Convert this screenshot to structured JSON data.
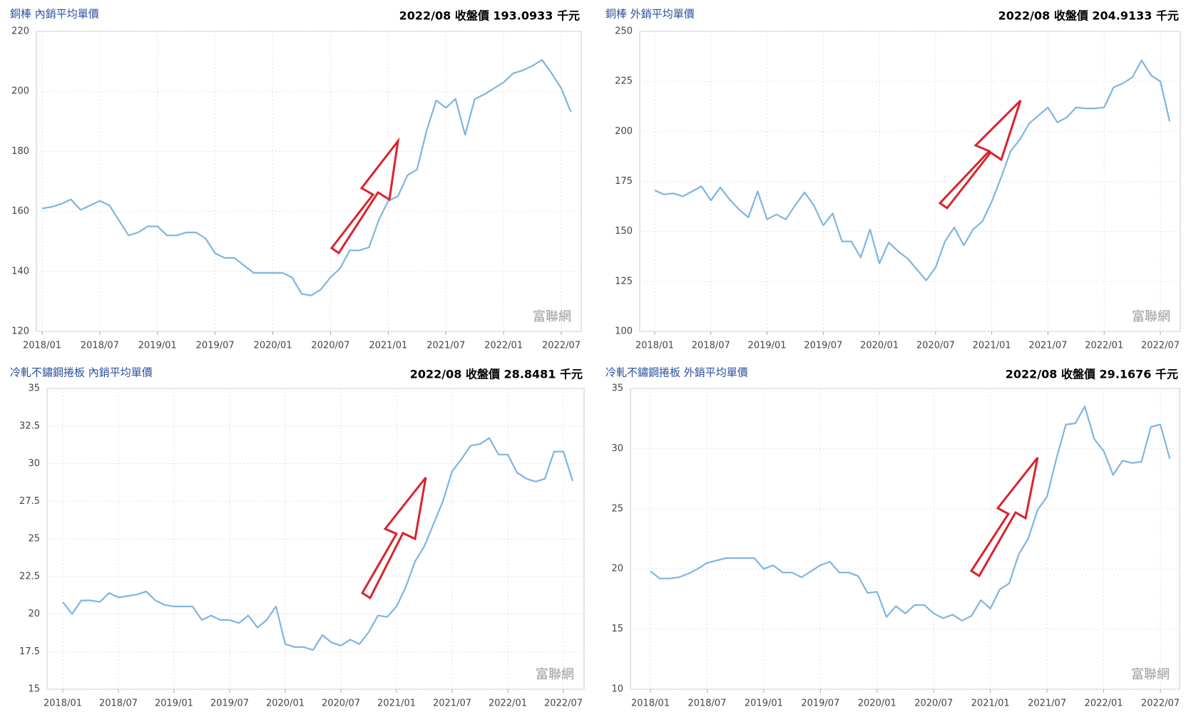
{
  "chart_data": [
    {
      "type": "line",
      "title": "銅棒 內銷平均單價",
      "subtitle": "2022/08 收盤價 193.0933 千元",
      "annotation": "富聯網",
      "color": "#7fb4e2",
      "grid": true,
      "categories": [
        "2018/01",
        null,
        null,
        null,
        null,
        null,
        "2018/07",
        null,
        null,
        null,
        null,
        null,
        "2019/01",
        null,
        null,
        null,
        null,
        null,
        "2019/07",
        null,
        null,
        null,
        null,
        null,
        "2020/01",
        null,
        null,
        null,
        null,
        null,
        "2020/07",
        null,
        null,
        null,
        null,
        null,
        "2021/01",
        null,
        null,
        null,
        null,
        null,
        "2021/07",
        null,
        null,
        null,
        null,
        null,
        "2022/01",
        null,
        null,
        null,
        null,
        null,
        "2022/07",
        null
      ],
      "values": [
        161,
        161.5,
        162.5,
        164,
        160.5,
        162,
        163.5,
        162,
        157,
        152,
        153,
        155,
        155,
        152,
        152,
        153,
        153,
        151,
        146,
        144.5,
        144.5,
        142,
        139.5,
        139.5,
        139.5,
        139.5,
        138,
        132.5,
        132,
        134,
        138,
        141,
        147,
        147,
        148,
        157,
        163.5,
        165,
        172,
        174,
        187,
        197,
        194.5,
        197.5,
        185.5,
        197.5,
        199,
        201,
        203,
        206,
        207,
        208.5,
        210.5,
        206,
        201,
        193.0933
      ],
      "ylim": [
        120,
        220
      ],
      "yticks": [
        120,
        140,
        160,
        180,
        200,
        220
      ]
    },
    {
      "type": "line",
      "title": "銅棒 外銷平均單價",
      "subtitle": "2022/08 收盤價 204.9133 千元",
      "annotation": "富聯網",
      "color": "#7fb4e2",
      "grid": true,
      "categories": [
        "2018/01",
        null,
        null,
        null,
        null,
        null,
        "2018/07",
        null,
        null,
        null,
        null,
        null,
        "2019/01",
        null,
        null,
        null,
        null,
        null,
        "2019/07",
        null,
        null,
        null,
        null,
        null,
        "2020/01",
        null,
        null,
        null,
        null,
        null,
        "2020/07",
        null,
        null,
        null,
        null,
        null,
        "2021/01",
        null,
        null,
        null,
        null,
        null,
        "2021/07",
        null,
        null,
        null,
        null,
        null,
        "2022/01",
        null,
        null,
        null,
        null,
        null,
        "2022/07",
        null
      ],
      "values": [
        170.5,
        168.5,
        169,
        167.5,
        170,
        172.5,
        165.5,
        172,
        166,
        161,
        157,
        170,
        156,
        158.5,
        156,
        163,
        169.5,
        163,
        153,
        159,
        145,
        145,
        137,
        151,
        134,
        144.5,
        140,
        136.5,
        131,
        125.5,
        132,
        145,
        152,
        143,
        151,
        155,
        165,
        177,
        190,
        196,
        204,
        208,
        212,
        204.5,
        207,
        212,
        211.5,
        211.5,
        212,
        222,
        224,
        227,
        235.5,
        228,
        225,
        204.9133
      ],
      "ylim": [
        100,
        250
      ],
      "yticks": [
        100,
        125,
        150,
        175,
        200,
        225,
        250
      ]
    },
    {
      "type": "line",
      "title": "冷軋不鏽鋼捲板 內銷平均單價",
      "subtitle": "2022/08 收盤價 28.8481 千元",
      "annotation": "富聯網",
      "color": "#7fb4e2",
      "grid": true,
      "categories": [
        "2018/01",
        null,
        null,
        null,
        null,
        null,
        "2018/07",
        null,
        null,
        null,
        null,
        null,
        "2019/01",
        null,
        null,
        null,
        null,
        null,
        "2019/07",
        null,
        null,
        null,
        null,
        null,
        "2020/01",
        null,
        null,
        null,
        null,
        null,
        "2020/07",
        null,
        null,
        null,
        null,
        null,
        "2021/01",
        null,
        null,
        null,
        null,
        null,
        "2021/07",
        null,
        null,
        null,
        null,
        null,
        "2022/01",
        null,
        null,
        null,
        null,
        null,
        "2022/07",
        null
      ],
      "values": [
        20.8,
        20,
        20.9,
        20.9,
        20.8,
        21.4,
        21.1,
        21.2,
        21.3,
        21.5,
        20.9,
        20.6,
        20.5,
        20.5,
        20.5,
        19.6,
        19.9,
        19.6,
        19.6,
        19.4,
        19.9,
        19.1,
        19.6,
        20.5,
        18,
        17.8,
        17.8,
        17.6,
        18.6,
        18.1,
        17.9,
        18.3,
        18,
        18.8,
        19.9,
        19.8,
        20.5,
        21.8,
        23.5,
        24.5,
        26,
        27.5,
        29.5,
        30.3,
        31.2,
        31.3,
        31.7,
        30.6,
        30.6,
        29.4,
        29,
        28.8,
        29,
        30.8,
        30.8,
        28.8481
      ],
      "ylim": [
        15,
        35
      ],
      "yticks": [
        15,
        17.5,
        20,
        22.5,
        25,
        27.5,
        30,
        32.5,
        35
      ]
    },
    {
      "type": "line",
      "title": "冷軋不鏽鋼捲板 外銷平均單價",
      "subtitle": "2022/08 收盤價 29.1676 千元",
      "annotation": "富聯網",
      "color": "#7fb4e2",
      "grid": true,
      "categories": [
        "2018/01",
        null,
        null,
        null,
        null,
        null,
        "2018/07",
        null,
        null,
        null,
        null,
        null,
        "2019/01",
        null,
        null,
        null,
        null,
        null,
        "2019/07",
        null,
        null,
        null,
        null,
        null,
        "2020/01",
        null,
        null,
        null,
        null,
        null,
        "2020/07",
        null,
        null,
        null,
        null,
        null,
        "2021/01",
        null,
        null,
        null,
        null,
        null,
        "2021/07",
        null,
        null,
        null,
        null,
        null,
        "2022/01",
        null,
        null,
        null,
        null,
        null,
        "2022/07",
        null
      ],
      "values": [
        19.8,
        19.2,
        19.2,
        19.3,
        19.6,
        20,
        20.5,
        20.7,
        20.9,
        20.9,
        20.9,
        20.9,
        20,
        20.3,
        19.7,
        19.7,
        19.3,
        19.8,
        20.3,
        20.6,
        19.7,
        19.7,
        19.4,
        18,
        18.1,
        16,
        16.9,
        16.3,
        17,
        17,
        16.3,
        15.9,
        16.2,
        15.7,
        16.1,
        17.4,
        16.7,
        18.3,
        18.8,
        21.2,
        22.5,
        24.9,
        26,
        29.2,
        32,
        32.1,
        33.5,
        30.8,
        29.8,
        27.8,
        29,
        28.8,
        28.9,
        31.8,
        32,
        29.1676
      ],
      "ylim": [
        10,
        35
      ],
      "yticks": [
        10,
        15,
        20,
        25,
        30,
        35
      ]
    }
  ]
}
